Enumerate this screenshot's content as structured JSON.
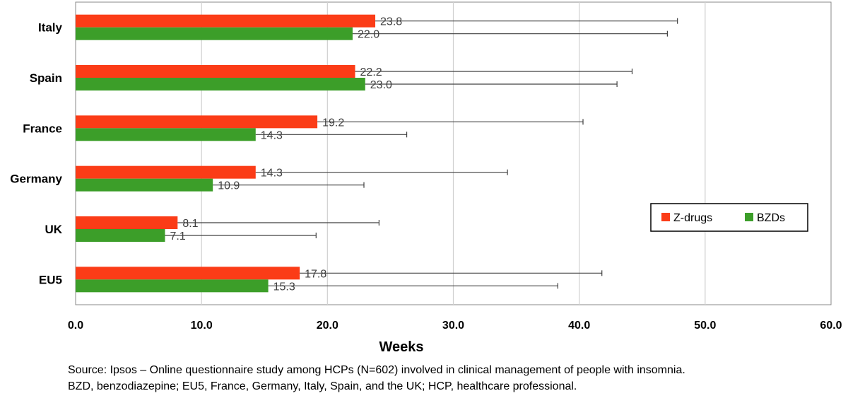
{
  "chart_data": {
    "type": "bar",
    "orientation": "horizontal",
    "categories": [
      "Italy",
      "Spain",
      "France",
      "Germany",
      "UK",
      "EU5"
    ],
    "series": [
      {
        "name": "Z-drugs",
        "color": "#fb3c17",
        "values": [
          23.8,
          22.2,
          19.2,
          14.3,
          8.1,
          17.8
        ],
        "error_upper": [
          47.8,
          44.2,
          40.3,
          34.3,
          24.1,
          41.8
        ]
      },
      {
        "name": "BZDs",
        "color": "#3c9e29",
        "values": [
          22.0,
          23.0,
          14.3,
          10.9,
          7.1,
          15.3
        ],
        "error_upper": [
          47.0,
          43.0,
          26.3,
          22.9,
          19.1,
          38.3
        ]
      }
    ],
    "value_labels": {
      "Z-drugs": [
        "23.8",
        "22.2",
        "19.2",
        "14.3",
        "8.1",
        "17.8"
      ],
      "BZDs": [
        "22.0",
        "23.0",
        "14.3",
        "10.9",
        "7.1",
        "15.3"
      ]
    },
    "xlabel": "Weeks",
    "xlim": [
      0,
      60
    ],
    "xticks": [
      "0.0",
      "10.0",
      "20.0",
      "30.0",
      "40.0",
      "50.0",
      "60.0"
    ],
    "grid": "vertical",
    "legend_position": "right"
  },
  "source": {
    "line1": "Source: Ipsos – Online questionnaire study among HCPs (N=602) involved in clinical management of people with insomnia.",
    "line2": "BZD, benzodiazepine; EU5, France, Germany, Italy, Spain, and the UK; HCP, healthcare professional."
  }
}
